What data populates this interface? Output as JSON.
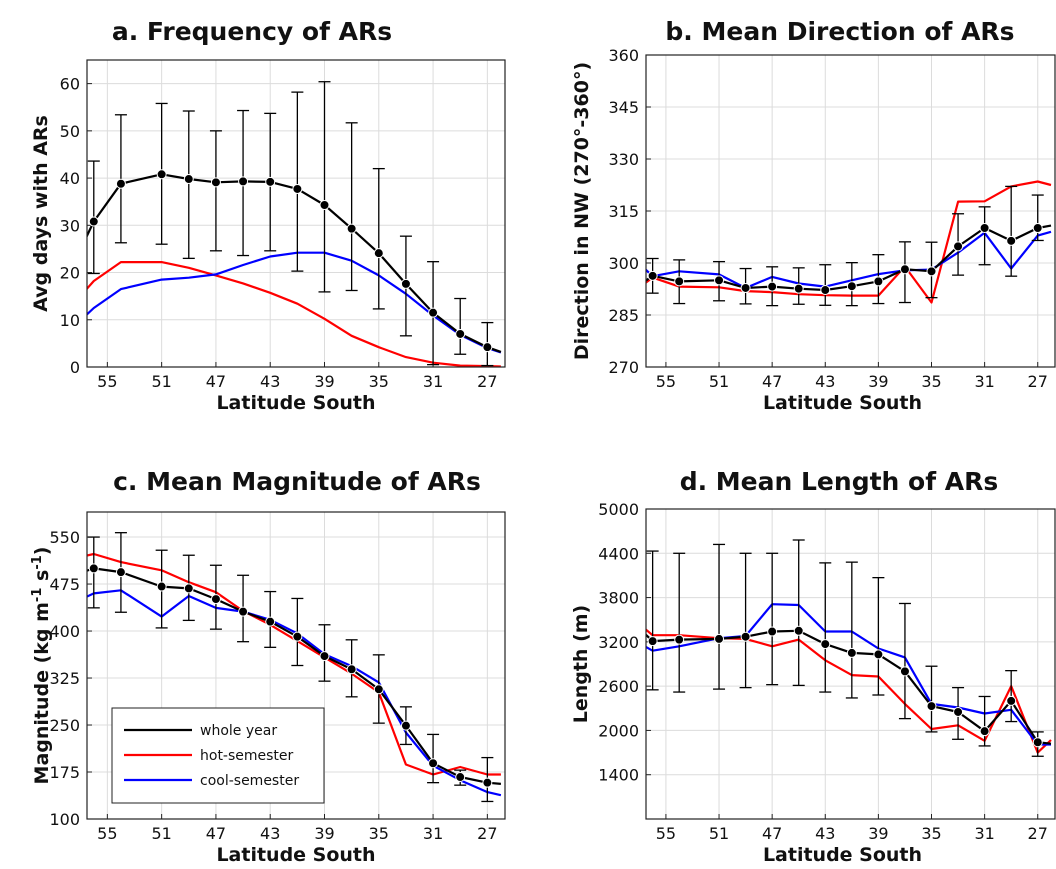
{
  "chart_data": [
    {
      "type": "line",
      "title": "a. Frequency of ARs",
      "xlabel": "Latitude South",
      "ylabel": "Avg days with ARs",
      "x": [
        57,
        56,
        54,
        51,
        49,
        47,
        45,
        43,
        41,
        39,
        37,
        35,
        33,
        31,
        29,
        27,
        26
      ],
      "xlim": [
        56.5,
        25.7
      ],
      "xticks": [
        55,
        51,
        47,
        43,
        39,
        35,
        31,
        27
      ],
      "ylim": [
        0,
        65
      ],
      "yticks": [
        0,
        10,
        20,
        30,
        40,
        50,
        60
      ],
      "grid": true,
      "series": [
        {
          "name": "whole year",
          "color": "#000000",
          "markers": true,
          "values": [
            24.8,
            30.8,
            38.8,
            40.8,
            39.8,
            39.1,
            39.3,
            39.2,
            37.7,
            34.3,
            29.3,
            24.1,
            17.6,
            11.5,
            7.0,
            4.2,
            3.2
          ],
          "err_low": [
            null,
            19.8,
            26.3,
            26.0,
            23.0,
            24.6,
            23.6,
            24.6,
            20.3,
            15.9,
            16.2,
            12.3,
            6.6,
            0.5,
            2.7,
            0.3,
            null
          ],
          "err_high": [
            null,
            43.6,
            53.4,
            55.8,
            54.2,
            50.0,
            54.3,
            53.7,
            58.2,
            60.4,
            51.7,
            42.0,
            27.7,
            22.3,
            14.5,
            9.4,
            null
          ]
        },
        {
          "name": "hot-semester",
          "color": "#ff0000",
          "markers": false,
          "values": [
            15.0,
            18.2,
            22.2,
            22.2,
            21.0,
            19.4,
            17.7,
            15.7,
            13.4,
            10.2,
            6.6,
            4.2,
            2.1,
            0.9,
            0.3,
            0.2,
            0.1
          ]
        },
        {
          "name": "cool-semester",
          "color": "#0000ff",
          "markers": false,
          "values": [
            9.8,
            12.5,
            16.5,
            18.5,
            18.9,
            19.6,
            21.6,
            23.4,
            24.2,
            24.2,
            22.5,
            19.4,
            15.5,
            10.9,
            6.8,
            4.0,
            3.1
          ]
        }
      ]
    },
    {
      "type": "line",
      "title": "b. Mean Direction of ARs",
      "xlabel": "Latitude South",
      "ylabel": "Direction in NW (270°-360°)",
      "x": [
        57,
        56,
        54,
        51,
        49,
        47,
        45,
        43,
        41,
        39,
        37,
        35,
        33,
        31,
        29,
        27,
        26
      ],
      "xlim": [
        56.5,
        25.7
      ],
      "xticks": [
        55,
        51,
        47,
        43,
        39,
        35,
        31,
        27
      ],
      "ylim": [
        270,
        360
      ],
      "yticks": [
        270,
        285,
        300,
        315,
        330,
        345,
        360
      ],
      "grid": true,
      "series": [
        {
          "name": "whole year",
          "color": "#000000",
          "markers": true,
          "values": [
            293.6,
            296.3,
            294.7,
            295.0,
            292.8,
            293.2,
            292.6,
            292.2,
            293.3,
            294.7,
            298.2,
            297.6,
            304.8,
            310.1,
            306.4,
            310.1,
            310.8
          ],
          "err_low": [
            null,
            291.3,
            288.3,
            289.1,
            288.2,
            287.7,
            288.1,
            287.8,
            287.7,
            288.3,
            288.6,
            290.0,
            296.5,
            299.5,
            296.2,
            306.5,
            null
          ],
          "err_high": [
            null,
            301.3,
            300.9,
            300.4,
            298.4,
            298.9,
            298.6,
            299.5,
            300.1,
            302.4,
            306.1,
            306.0,
            314.2,
            316.2,
            322.1,
            319.6,
            null
          ]
        },
        {
          "name": "hot-semester",
          "color": "#ff0000",
          "markers": false,
          "values": [
            293.0,
            295.8,
            293.2,
            293.0,
            291.9,
            291.6,
            291.0,
            290.7,
            290.6,
            290.6,
            299.0,
            288.6,
            317.7,
            317.8,
            322.1,
            323.5,
            322.5
          ]
        },
        {
          "name": "cool-semester",
          "color": "#0000ff",
          "markers": false,
          "values": [
            299.8,
            296.2,
            297.6,
            296.7,
            292.8,
            296.0,
            294.1,
            293.2,
            295.0,
            296.8,
            297.9,
            298.1,
            303.0,
            308.7,
            298.4,
            307.9,
            309.0
          ]
        }
      ]
    },
    {
      "type": "line",
      "title": "c. Mean Magnitude of ARs",
      "xlabel": "Latitude South",
      "ylabel": "Magnitude (kg m-1 s-1)",
      "x": [
        57,
        56,
        54,
        51,
        49,
        47,
        45,
        43,
        41,
        39,
        37,
        35,
        33,
        31,
        29,
        27,
        26
      ],
      "xlim": [
        56.5,
        25.7
      ],
      "xticks": [
        55,
        51,
        47,
        43,
        39,
        35,
        31,
        27
      ],
      "ylim": [
        100,
        590
      ],
      "yticks": [
        100,
        175,
        250,
        325,
        400,
        475,
        550
      ],
      "grid": true,
      "series": [
        {
          "name": "whole year",
          "color": "#000000",
          "markers": true,
          "values": [
            493,
            500,
            494,
            471,
            468,
            451,
            431,
            415,
            391,
            360,
            339,
            307,
            249,
            189,
            167,
            158,
            156
          ],
          "err_low": [
            null,
            437,
            430,
            405,
            417,
            403,
            383,
            374,
            345,
            320,
            295,
            253,
            219,
            158,
            154,
            128,
            null
          ],
          "err_high": [
            null,
            550,
            557,
            529,
            521,
            505,
            489,
            463,
            452,
            410,
            386,
            362,
            279,
            235,
            178,
            198,
            null
          ]
        },
        {
          "name": "hot-semester",
          "color": "#ff0000",
          "markers": false,
          "values": [
            518,
            523,
            510,
            497,
            478,
            462,
            432,
            410,
            384,
            358,
            332,
            302,
            187,
            171,
            183,
            171,
            171
          ]
        },
        {
          "name": "cool-semester",
          "color": "#0000ff",
          "markers": false,
          "values": [
            450,
            460,
            465,
            423,
            456,
            437,
            431,
            418,
            396,
            363,
            344,
            318,
            238,
            185,
            162,
            143,
            138
          ]
        }
      ],
      "legend": {
        "position": "bottom-left",
        "entries": [
          "whole year",
          "hot-semester",
          "cool-semester"
        ]
      }
    },
    {
      "type": "line",
      "title": "d. Mean Length of ARs",
      "xlabel": "Latitude South",
      "ylabel": "Length (m)",
      "x": [
        57,
        56,
        54,
        51,
        49,
        47,
        45,
        43,
        41,
        39,
        37,
        35,
        33,
        31,
        29,
        27,
        26
      ],
      "xlim": [
        56.5,
        25.7
      ],
      "xticks": [
        55,
        51,
        47,
        43,
        39,
        35,
        31,
        27
      ],
      "ylim": [
        800,
        5000
      ],
      "yticks": [
        1400,
        2000,
        2600,
        3200,
        3800,
        4400,
        5000
      ],
      "grid": true,
      "series": [
        {
          "name": "whole year",
          "color": "#000000",
          "markers": true,
          "values": [
            3380,
            3210,
            3230,
            3240,
            3270,
            3340,
            3350,
            3170,
            3050,
            3030,
            2800,
            2330,
            2250,
            1990,
            2400,
            1840,
            1820
          ],
          "err_low": [
            null,
            2550,
            2520,
            2560,
            2580,
            2620,
            2610,
            2520,
            2440,
            2480,
            2160,
            1980,
            1880,
            1790,
            2120,
            1650,
            null
          ],
          "err_high": [
            null,
            4430,
            4400,
            4520,
            4400,
            4400,
            4580,
            4270,
            4280,
            4070,
            3720,
            2870,
            2580,
            2460,
            2810,
            1980,
            null
          ]
        },
        {
          "name": "hot-semester",
          "color": "#ff0000",
          "markers": false,
          "values": [
            3440,
            3290,
            3290,
            3250,
            3240,
            3140,
            3230,
            2950,
            2750,
            2730,
            2360,
            2020,
            2070,
            1860,
            2600,
            1700,
            1870
          ]
        },
        {
          "name": "cool-semester",
          "color": "#0000ff",
          "markers": false,
          "values": [
            3180,
            3080,
            3140,
            3250,
            3280,
            3710,
            3700,
            3340,
            3340,
            3110,
            2990,
            2360,
            2310,
            2230,
            2280,
            1810,
            1810
          ]
        }
      ]
    }
  ]
}
